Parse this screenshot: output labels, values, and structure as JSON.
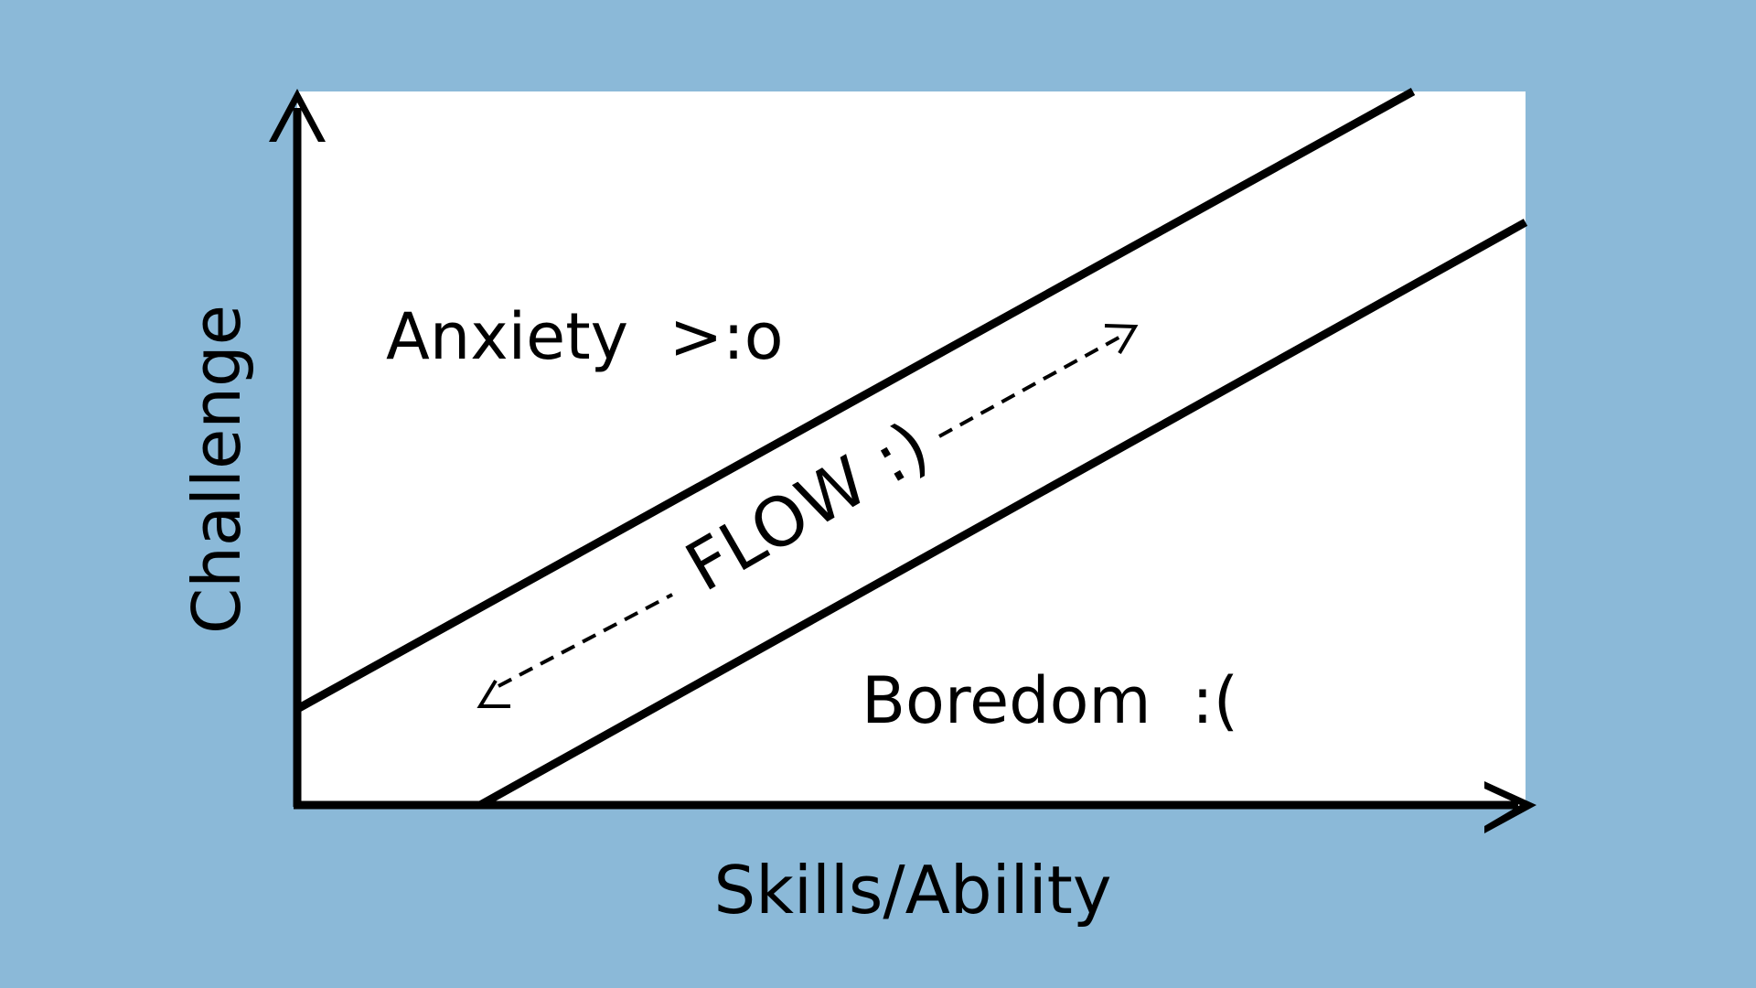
{
  "diagram": {
    "y_axis_label": "Challenge",
    "x_axis_label": "Skills/Ability",
    "regions": {
      "anxiety": "Anxiety  >:o",
      "flow": "FLOW :)",
      "boredom": "Boredom  :("
    }
  },
  "colors": {
    "background": "#8BB9D8",
    "panel": "#FFFFFF",
    "ink": "#000000"
  }
}
